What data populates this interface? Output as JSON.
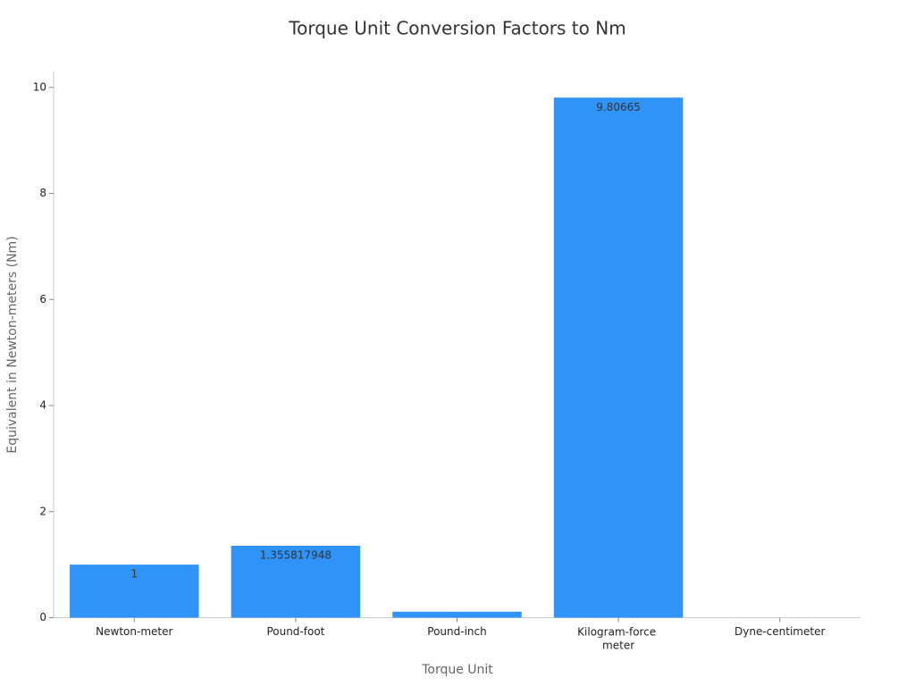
{
  "chart_data": {
    "type": "bar",
    "title": "Torque Unit Conversion Factors to Nm",
    "x_label": "Torque Unit",
    "y_label": "Equivalent in Newton-meters (Nm)",
    "categories": [
      "Newton-meter",
      "Pound-foot",
      "Pound-inch",
      "Kilogram-force meter",
      "Dyne-centimeter"
    ],
    "values": [
      1,
      1.355817948,
      0.112984829,
      9.80665,
      1e-07
    ],
    "color": "#2f93f8",
    "ylim": [
      0,
      10.3
    ],
    "yticks": [
      0,
      2,
      4,
      6,
      8,
      10
    ],
    "grid": false
  }
}
